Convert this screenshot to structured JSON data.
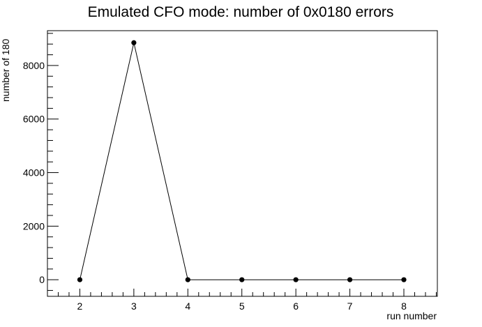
{
  "chart_data": {
    "type": "line",
    "title": "Emulated CFO mode: number of 0x0180 errors",
    "xlabel": "run number",
    "ylabel": "number of 180",
    "x": [
      2,
      3,
      4,
      5,
      6,
      7,
      8
    ],
    "series": [
      {
        "values": [
          0,
          8850,
          0,
          0,
          0,
          0,
          0
        ]
      }
    ],
    "xlim": [
      1.4,
      8.62
    ],
    "ylim": [
      -620,
      9300
    ],
    "x_ticks": [
      "2",
      "3",
      "4",
      "5",
      "6",
      "7",
      "8"
    ],
    "y_ticks": [
      "0",
      "2000",
      "4000",
      "6000",
      "8000"
    ],
    "grid": false,
    "marker": "circle",
    "line_color": "#000000",
    "marker_color": "#000000"
  }
}
